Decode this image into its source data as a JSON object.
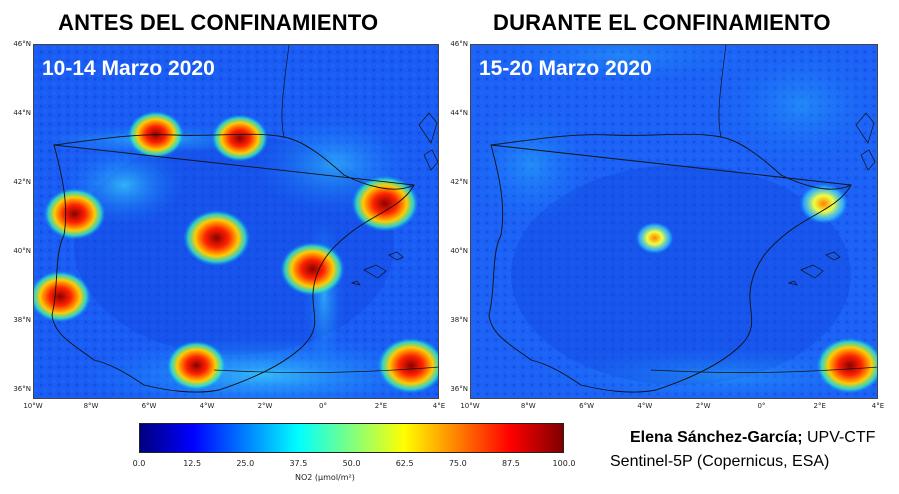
{
  "titles": {
    "left": "ANTES DEL CONFINAMIENTO",
    "right": "DURANTE EL CONFINAMIENTO"
  },
  "periods": {
    "left": "10-14 Marzo 2020",
    "right": "15-20 Marzo 2020"
  },
  "latitude_ticks": [
    "46°N",
    "44°N",
    "42°N",
    "40°N",
    "38°N",
    "36°N"
  ],
  "longitude_ticks": [
    "10°W",
    "8°W",
    "6°W",
    "4°W",
    "2°W",
    "0°",
    "2°E",
    "4°E"
  ],
  "colorbar": {
    "ticks": [
      "0.0",
      "12.5",
      "25.0",
      "37.5",
      "50.0",
      "62.5",
      "75.0",
      "87.5",
      "100.0"
    ],
    "label": "NO2 (µmol/m²)",
    "range": [
      0,
      100
    ],
    "colors": [
      "#00007f",
      "#0000ff",
      "#0080ff",
      "#00ffff",
      "#80ff80",
      "#ffff00",
      "#ff8000",
      "#ff0000",
      "#7f0000"
    ]
  },
  "credits": {
    "author": "Elena Sánchez-García;",
    "affiliation": " UPV-CTF",
    "source": "Sentinel-5P (Copernicus, ESA)"
  },
  "hotspots": {
    "left": [
      {
        "name": "Madrid",
        "lon": -3.7,
        "lat": 40.4,
        "level": 100
      },
      {
        "name": "Barcelona",
        "lon": 2.1,
        "lat": 41.4,
        "level": 100
      },
      {
        "name": "Valencia",
        "lon": -0.4,
        "lat": 39.5,
        "level": 95
      },
      {
        "name": "Lisboa",
        "lon": -9.1,
        "lat": 38.7,
        "level": 90
      },
      {
        "name": "Porto",
        "lon": -8.6,
        "lat": 41.1,
        "level": 90
      },
      {
        "name": "Bilbao",
        "lon": -2.9,
        "lat": 43.3,
        "level": 80
      },
      {
        "name": "Asturias",
        "lon": -5.8,
        "lat": 43.4,
        "level": 80
      },
      {
        "name": "Málaga",
        "lon": -4.4,
        "lat": 36.7,
        "level": 85
      },
      {
        "name": "Argel",
        "lon": 3.0,
        "lat": 36.7,
        "level": 100
      }
    ],
    "right": [
      {
        "name": "Argel",
        "lon": 3.0,
        "lat": 36.7,
        "level": 100
      },
      {
        "name": "Barcelona",
        "lon": 2.1,
        "lat": 41.4,
        "level": 65
      },
      {
        "name": "Madrid",
        "lon": -3.7,
        "lat": 40.4,
        "level": 45
      }
    ]
  }
}
